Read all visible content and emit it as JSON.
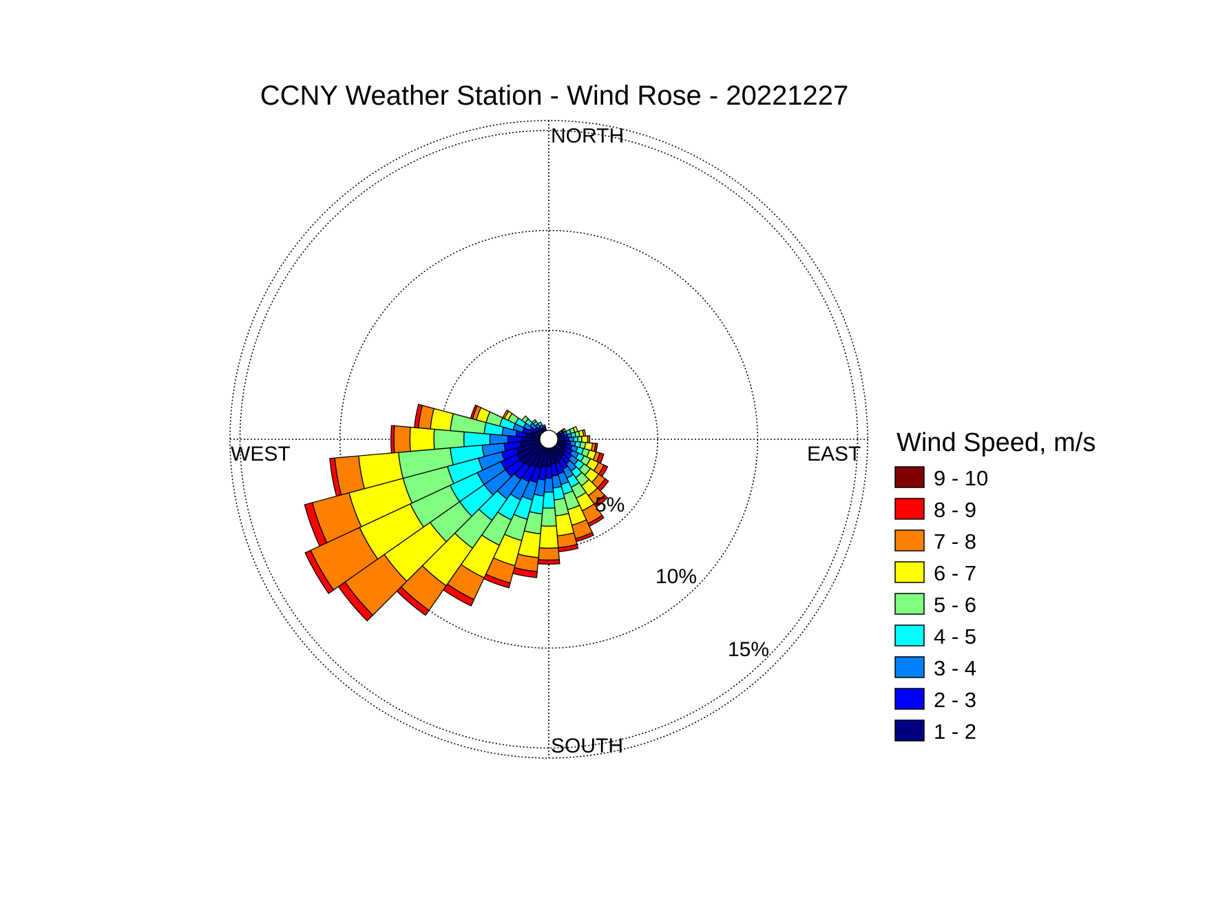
{
  "chart_data": {
    "type": "wind-rose",
    "title": "CCNY Weather Station - Wind Rose - 20221227",
    "direction_labels": {
      "north": "NORTH",
      "south": "SOUTH",
      "east": "EAST",
      "west": "WEST"
    },
    "rings": [
      5,
      10,
      15
    ],
    "ring_labels": [
      "5%",
      "10%",
      "15%"
    ],
    "r_max": 15.5,
    "sector_width_deg": 10,
    "legend": {
      "title": "Wind Speed, m/s",
      "bins": [
        {
          "label": "9 - 10",
          "color": "#800000"
        },
        {
          "label": "8 - 9",
          "color": "#ff0000"
        },
        {
          "label": "7 - 8",
          "color": "#ff8000"
        },
        {
          "label": "6 - 7",
          "color": "#ffff00"
        },
        {
          "label": "5 - 6",
          "color": "#80ff80"
        },
        {
          "label": "4 - 5",
          "color": "#00ffff"
        },
        {
          "label": "3 - 4",
          "color": "#0080ff"
        },
        {
          "label": "2 - 3",
          "color": "#0000ff"
        },
        {
          "label": "1 - 2",
          "color": "#000080"
        }
      ]
    },
    "bin_colors_inner_to_outer": [
      "#000080",
      "#0000ff",
      "#0080ff",
      "#00ffff",
      "#80ff80",
      "#ffff00",
      "#ff8000",
      "#ff0000",
      "#800000"
    ],
    "sectors": [
      {
        "direction_deg": 60,
        "cumulative_pct": [
          0.1,
          0.2,
          0.3,
          0.35,
          0.42,
          0.5
        ]
      },
      {
        "direction_deg": 70,
        "cumulative_pct": [
          0.2,
          0.35,
          0.5,
          0.7,
          0.9,
          1.05
        ]
      },
      {
        "direction_deg": 80,
        "cumulative_pct": [
          0.3,
          0.5,
          0.7,
          0.9,
          1.1,
          1.3,
          1.4
        ]
      },
      {
        "direction_deg": 90,
        "cumulative_pct": [
          0.35,
          0.55,
          0.8,
          1.0,
          1.2,
          1.5,
          1.6
        ]
      },
      {
        "direction_deg": 100,
        "cumulative_pct": [
          0.4,
          0.65,
          0.9,
          1.15,
          1.4,
          1.75,
          1.9,
          2.0
        ]
      },
      {
        "direction_deg": 110,
        "cumulative_pct": [
          0.45,
          0.75,
          1.05,
          1.35,
          1.65,
          2.0,
          2.2,
          2.4
        ]
      },
      {
        "direction_deg": 120,
        "cumulative_pct": [
          0.5,
          0.85,
          1.2,
          1.5,
          1.85,
          2.3,
          2.6,
          2.8
        ]
      },
      {
        "direction_deg": 130,
        "cumulative_pct": [
          0.55,
          0.95,
          1.35,
          1.7,
          2.1,
          2.6,
          3.0,
          3.2
        ]
      },
      {
        "direction_deg": 140,
        "cumulative_pct": [
          0.6,
          1.05,
          1.5,
          1.9,
          2.4,
          3.0,
          3.5,
          3.7
        ]
      },
      {
        "direction_deg": 150,
        "cumulative_pct": [
          0.7,
          1.2,
          1.7,
          2.2,
          2.8,
          3.5,
          4.2,
          4.35
        ]
      },
      {
        "direction_deg": 160,
        "cumulative_pct": [
          0.8,
          1.35,
          1.9,
          2.4,
          3.2,
          4.0,
          4.7,
          4.85
        ]
      },
      {
        "direction_deg": 170,
        "cumulative_pct": [
          0.8,
          1.4,
          2.0,
          2.6,
          3.4,
          4.4,
          5.0,
          5.2
        ]
      },
      {
        "direction_deg": 180,
        "cumulative_pct": [
          0.9,
          1.5,
          2.2,
          3.0,
          3.9,
          5.0,
          5.6,
          5.8
        ]
      },
      {
        "direction_deg": 190,
        "cumulative_pct": [
          0.95,
          1.6,
          2.4,
          3.3,
          4.3,
          5.5,
          6.2,
          6.5
        ]
      },
      {
        "direction_deg": 200,
        "cumulative_pct": [
          1.05,
          1.8,
          2.7,
          3.7,
          4.8,
          6.1,
          7.0,
          7.25
        ]
      },
      {
        "direction_deg": 210,
        "cumulative_pct": [
          1.1,
          1.9,
          2.9,
          4.0,
          5.4,
          7.2,
          8.4,
          8.75
        ]
      },
      {
        "direction_deg": 220,
        "cumulative_pct": [
          1.2,
          2.0,
          3.2,
          4.5,
          6.2,
          8.5,
          10.0,
          10.3
        ]
      },
      {
        "direction_deg": 230,
        "cumulative_pct": [
          1.3,
          2.2,
          3.5,
          5.0,
          6.8,
          9.6,
          12.0,
          12.4
        ]
      },
      {
        "direction_deg": 240,
        "cumulative_pct": [
          1.3,
          2.2,
          3.5,
          5.0,
          7.2,
          10.0,
          12.7,
          13.0
        ]
      },
      {
        "direction_deg": 250,
        "cumulative_pct": [
          1.2,
          2.0,
          3.2,
          4.8,
          7.1,
          9.9,
          11.8,
          12.2
        ]
      },
      {
        "direction_deg": 260,
        "cumulative_pct": [
          1.0,
          1.8,
          2.9,
          4.5,
          7.1,
          9.1,
          10.3,
          10.55
        ]
      },
      {
        "direction_deg": 270,
        "cumulative_pct": [
          0.9,
          1.6,
          2.5,
          3.8,
          5.3,
          6.5,
          7.3,
          7.45
        ]
      },
      {
        "direction_deg": 280,
        "cumulative_pct": [
          0.7,
          1.2,
          1.9,
          2.8,
          4.5,
          5.5,
          6.1,
          6.3
        ]
      },
      {
        "direction_deg": 290,
        "cumulative_pct": [
          0.5,
          0.9,
          1.4,
          2.1,
          2.8,
          3.3,
          3.5,
          3.6
        ]
      },
      {
        "direction_deg": 300,
        "cumulative_pct": [
          0.3,
          0.6,
          0.95,
          1.4,
          1.8,
          2.0,
          2.1
        ]
      },
      {
        "direction_deg": 310,
        "cumulative_pct": [
          0.2,
          0.4,
          0.7,
          1.0,
          1.2
        ]
      },
      {
        "direction_deg": 320,
        "cumulative_pct": [
          0.15,
          0.3,
          0.5,
          0.65,
          0.75
        ]
      },
      {
        "direction_deg": 330,
        "cumulative_pct": [
          0.1,
          0.2,
          0.35,
          0.5
        ]
      },
      {
        "direction_deg": 340,
        "cumulative_pct": [
          0.1,
          0.2,
          0.3
        ]
      }
    ]
  }
}
